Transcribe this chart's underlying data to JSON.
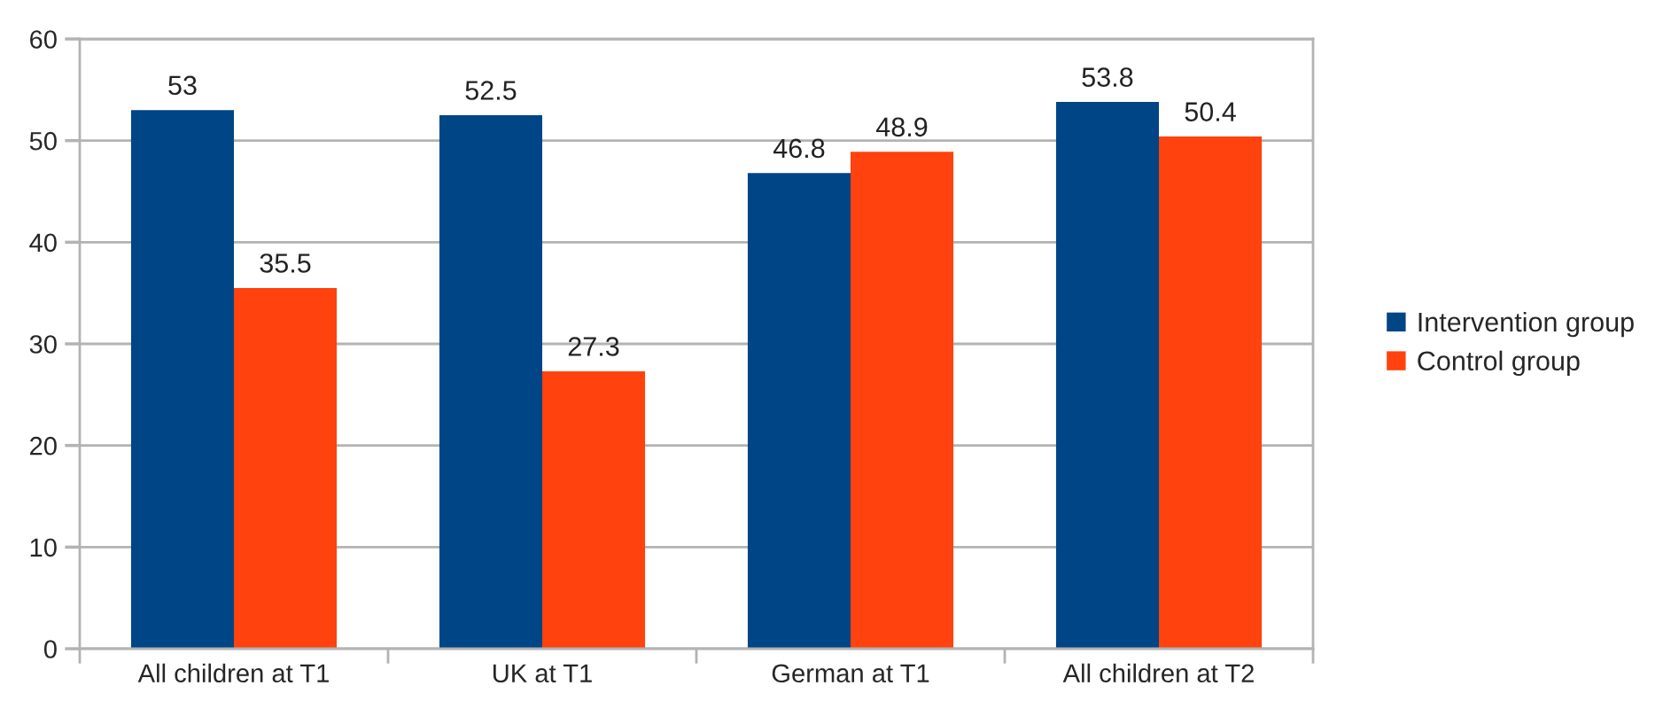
{
  "chart_data": {
    "type": "bar",
    "categories": [
      "All children at T1",
      "UK at T1",
      "German at T1",
      "All children at T2"
    ],
    "series": [
      {
        "name": "Intervention group",
        "color": "#004586",
        "values": [
          53,
          52.5,
          46.8,
          53.8
        ]
      },
      {
        "name": "Control group",
        "color": "#ff420e",
        "values": [
          35.5,
          27.3,
          48.9,
          50.4
        ]
      }
    ],
    "ylim": [
      0,
      60
    ],
    "yticks": [
      0,
      10,
      20,
      30,
      40,
      50,
      60
    ],
    "grid": "y",
    "legend": "right",
    "data_labels": true
  }
}
